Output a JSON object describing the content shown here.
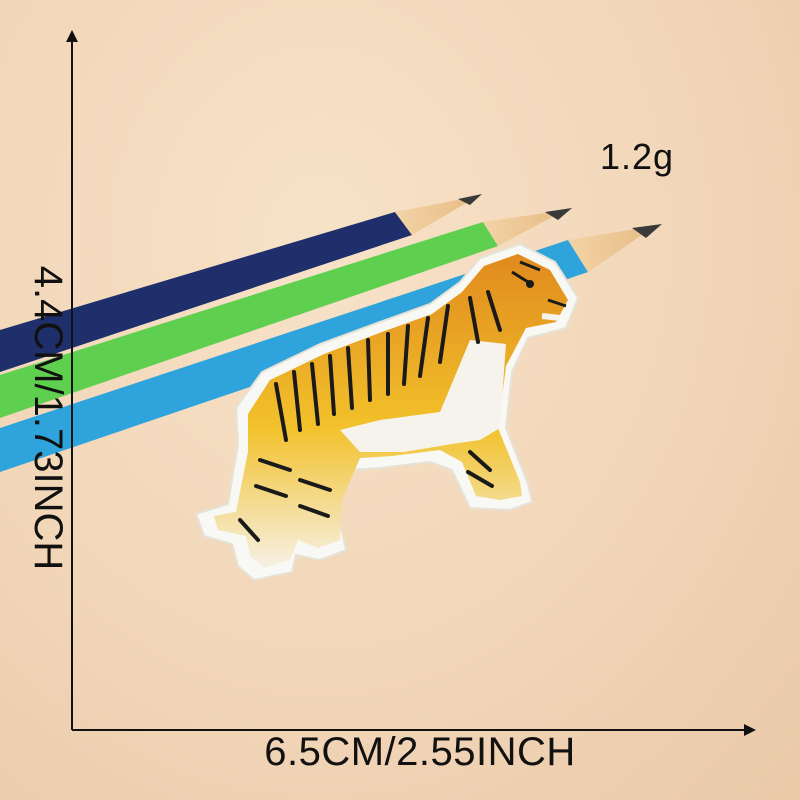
{
  "product": {
    "weight": "1.2g",
    "width_dimension": "6.5CM/2.55INCH",
    "height_dimension": "4.4CM/1.73INCH"
  },
  "colors": {
    "background": "#f2d6b8",
    "pencil_navy": "#1f2f6b",
    "pencil_green": "#5fcf4f",
    "pencil_blue": "#2fa4dc",
    "tiger_orange": "#e08a1e",
    "tiger_yellow": "#f2c12a",
    "stripe_black": "#1a1a1a",
    "patch_border": "#f8f8f4",
    "axis": "#111111"
  }
}
